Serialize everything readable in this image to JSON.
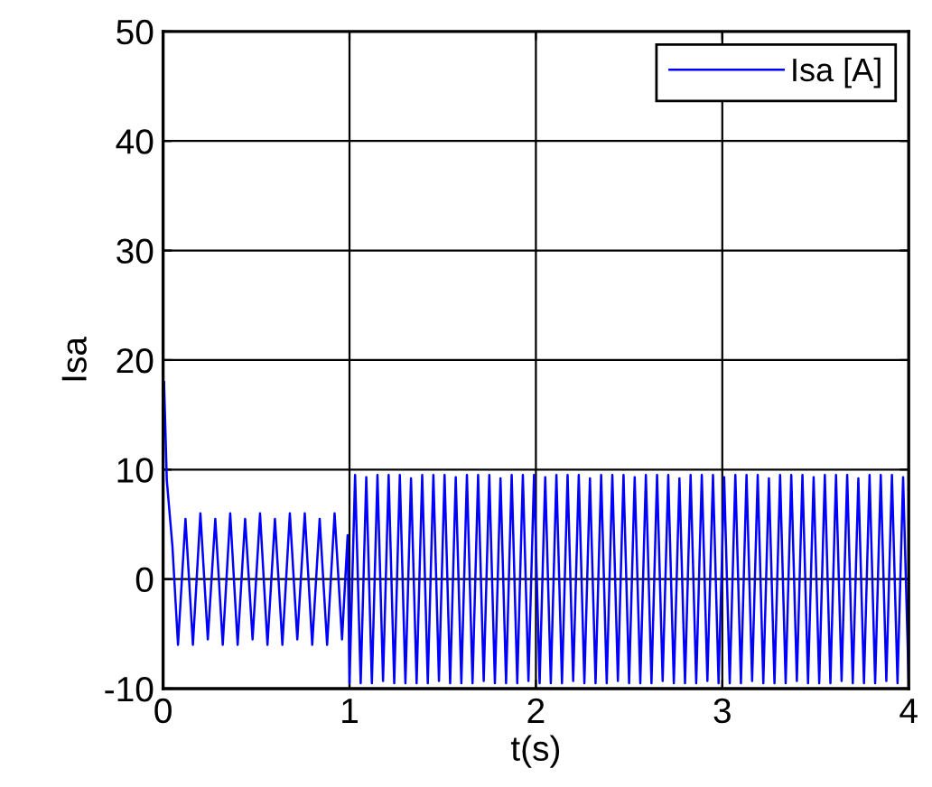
{
  "chart_data": {
    "type": "line",
    "xlabel": "t(s)",
    "ylabel": "Isa",
    "xlim": [
      0,
      4
    ],
    "xticks": [
      0,
      1,
      2,
      3,
      4
    ],
    "ylim": [
      -10,
      50
    ],
    "yticks": [
      -10,
      0,
      10,
      20,
      30,
      40,
      50
    ],
    "grid": true,
    "legend": "top right",
    "line_style": "solid",
    "series": [
      {
        "name": "Isa [A]",
        "color": "#0000ff",
        "x": [
          0.005,
          0.02,
          0.05,
          0.08,
          0.12,
          0.16,
          0.2,
          0.24,
          0.28,
          0.32,
          0.36,
          0.4,
          0.44,
          0.48,
          0.52,
          0.56,
          0.6,
          0.64,
          0.68,
          0.72,
          0.76,
          0.8,
          0.84,
          0.88,
          0.92,
          0.96,
          0.99,
          1.0,
          1.03,
          1.06,
          1.09,
          1.12,
          1.15,
          1.18,
          1.21,
          1.24,
          1.27,
          1.3,
          1.33,
          1.36,
          1.39,
          1.42,
          1.45,
          1.48,
          1.51,
          1.54,
          1.57,
          1.6,
          1.63,
          1.66,
          1.69,
          1.72,
          1.75,
          1.78,
          1.81,
          1.84,
          1.87,
          1.9,
          1.93,
          1.96,
          1.99,
          2.02,
          2.05,
          2.08,
          2.11,
          2.14,
          2.17,
          2.2,
          2.23,
          2.26,
          2.29,
          2.32,
          2.35,
          2.38,
          2.41,
          2.44,
          2.47,
          2.5,
          2.53,
          2.56,
          2.59,
          2.62,
          2.65,
          2.68,
          2.71,
          2.74,
          2.77,
          2.8,
          2.83,
          2.86,
          2.89,
          2.92,
          2.95,
          2.98,
          3.01,
          3.04,
          3.07,
          3.1,
          3.13,
          3.16,
          3.19,
          3.22,
          3.25,
          3.28,
          3.31,
          3.34,
          3.37,
          3.4,
          3.43,
          3.46,
          3.49,
          3.52,
          3.55,
          3.58,
          3.61,
          3.64,
          3.67,
          3.7,
          3.73,
          3.76,
          3.79,
          3.82,
          3.85,
          3.88,
          3.91,
          3.94,
          3.97,
          4.0
        ],
        "values": [
          18,
          9,
          3,
          -6,
          5.5,
          -6,
          6,
          -5.5,
          5.5,
          -6,
          6,
          -6,
          5.5,
          -5.5,
          6,
          -6,
          5.5,
          -6,
          6,
          -5.5,
          6,
          -6,
          5.5,
          -6,
          6,
          -5.5,
          4,
          -9.5,
          9.5,
          -9.5,
          9.3,
          -9.5,
          9.5,
          -9.3,
          9.5,
          -9.5,
          9.5,
          -9.5,
          9.2,
          -9.5,
          9.5,
          -9.5,
          9.5,
          -9.3,
          9.5,
          -9.5,
          9.3,
          -9.5,
          9.5,
          -9.5,
          9.5,
          -9.3,
          9.5,
          -9.5,
          9.2,
          -9.5,
          9.5,
          -9.5,
          9.5,
          -9.3,
          9.5,
          -9.5,
          9.3,
          -9.5,
          9.5,
          -9.5,
          9.5,
          -9.3,
          9.5,
          -9.5,
          9.2,
          -9.5,
          9.5,
          -9.5,
          9.5,
          -9.3,
          9.5,
          -9.5,
          9.3,
          -9.5,
          9.5,
          -9.5,
          9.5,
          -9.3,
          9.5,
          -9.5,
          9.2,
          -9.5,
          9.5,
          -9.5,
          9.5,
          -9.3,
          9.5,
          -9.5,
          9.3,
          -9.5,
          9.5,
          -9.5,
          9.5,
          -9.3,
          9.5,
          -9.5,
          9.2,
          -9.5,
          9.5,
          -9.5,
          9.5,
          -9.3,
          9.5,
          -9.5,
          9.3,
          -9.5,
          9.5,
          -9.5,
          9.5,
          -9.3,
          9.5,
          -9.5,
          9.2,
          -9.5,
          9.5,
          -9.5,
          9.5,
          -9.3,
          9.5,
          -9.5,
          9.3,
          -9.5
        ]
      }
    ]
  }
}
